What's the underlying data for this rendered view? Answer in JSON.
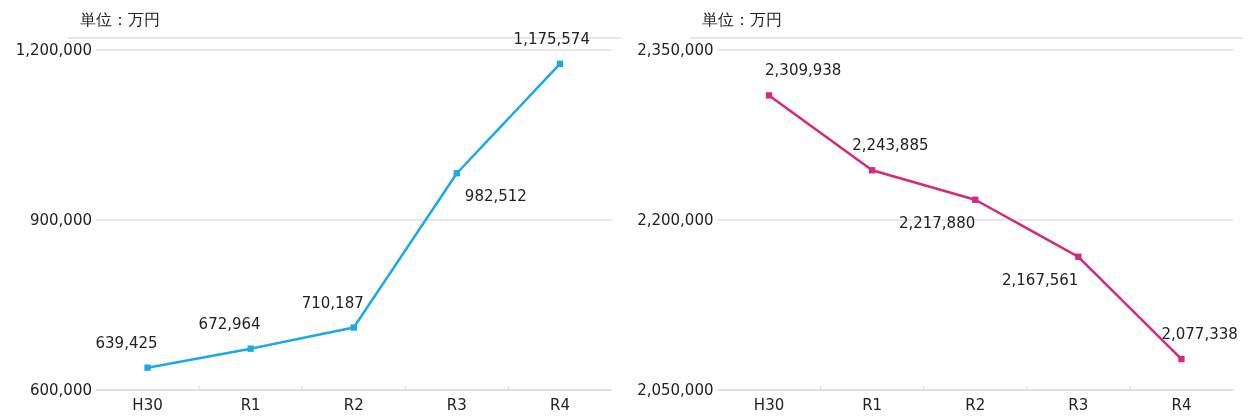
{
  "chart_data": [
    {
      "type": "line",
      "ylabel": "単位：万円",
      "categories": [
        "H30",
        "R1",
        "R2",
        "R3",
        "R4"
      ],
      "series": [
        {
          "color": "#1aa9e8",
          "values": [
            639425,
            672964,
            710187,
            982512,
            1175574
          ],
          "value_labels": [
            "639,425",
            "672,964",
            "710,187",
            "982,512",
            "1,175,574"
          ]
        }
      ],
      "ylim": [
        600000,
        1200000
      ],
      "yticks": [
        {
          "value": 600000,
          "label": "600,000"
        },
        {
          "value": 900000,
          "label": "900,000"
        },
        {
          "value": 1200000,
          "label": "1,200,000"
        }
      ],
      "grid": "y",
      "marker": "square"
    },
    {
      "type": "line",
      "ylabel": "単位：万円",
      "categories": [
        "H30",
        "R1",
        "R2",
        "R3",
        "R4"
      ],
      "series": [
        {
          "color": "#d6287a",
          "values": [
            2309938,
            2243885,
            2217880,
            2167561,
            2077338
          ],
          "value_labels": [
            "2,309,938",
            "2,243,885",
            "2,217,880",
            "2,167,561",
            "2,077,338"
          ]
        }
      ],
      "ylim": [
        2050000,
        2350000
      ],
      "yticks": [
        {
          "value": 2050000,
          "label": "2,050,000"
        },
        {
          "value": 2200000,
          "label": "2,200,000"
        },
        {
          "value": 2350000,
          "label": "2,350,000"
        }
      ],
      "grid": "y",
      "marker": "square"
    }
  ]
}
